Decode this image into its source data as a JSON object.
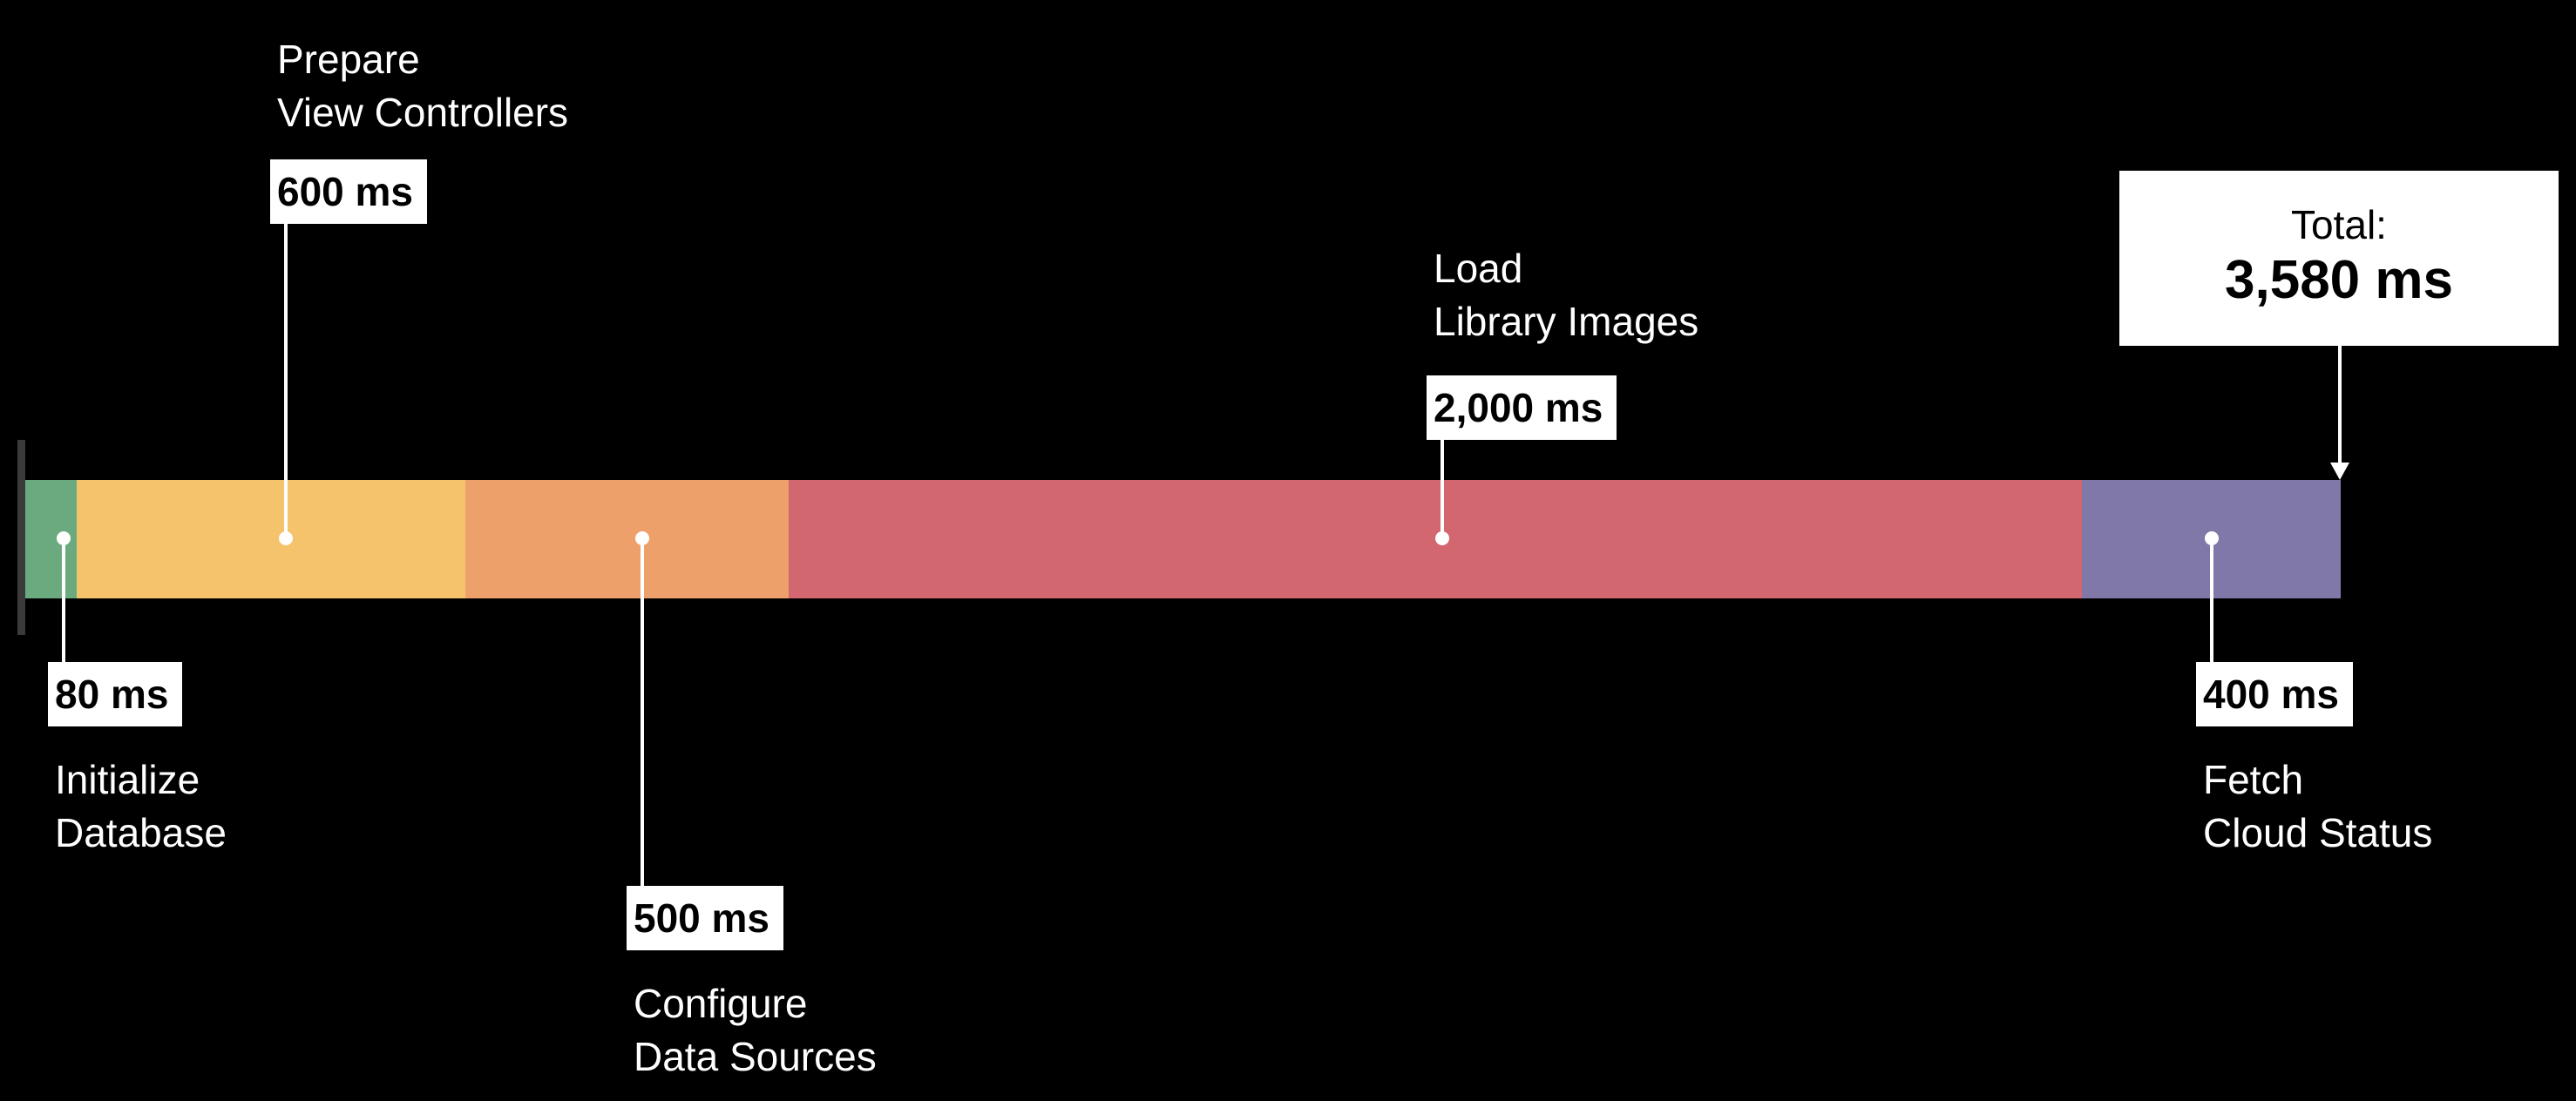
{
  "chart_data": {
    "type": "bar",
    "orientation": "horizontal-stacked",
    "unit": "ms",
    "series": [
      {
        "name": "Initialize Database",
        "value": 80,
        "value_label": "80 ms",
        "label_lines": [
          "Initialize",
          "Database"
        ],
        "color": "#6aaa7e"
      },
      {
        "name": "Prepare View Controllers",
        "value": 600,
        "value_label": "600 ms",
        "label_lines": [
          "Prepare",
          "View Controllers"
        ],
        "color": "#f5c36b"
      },
      {
        "name": "Configure Data Sources",
        "value": 500,
        "value_label": "500 ms",
        "label_lines": [
          "Configure",
          "Data Sources"
        ],
        "color": "#eea06b"
      },
      {
        "name": "Load Library Images",
        "value": 2000,
        "value_label": "2,000 ms",
        "label_lines": [
          "Load",
          "Library Images"
        ],
        "color": "#d3676f"
      },
      {
        "name": "Fetch Cloud Status",
        "value": 400,
        "value_label": "400 ms",
        "label_lines": [
          "Fetch",
          "Cloud Status"
        ],
        "color": "#7f78a9"
      }
    ],
    "total": {
      "label": "Total:",
      "value": 3580,
      "value_label": "3,580 ms"
    }
  }
}
